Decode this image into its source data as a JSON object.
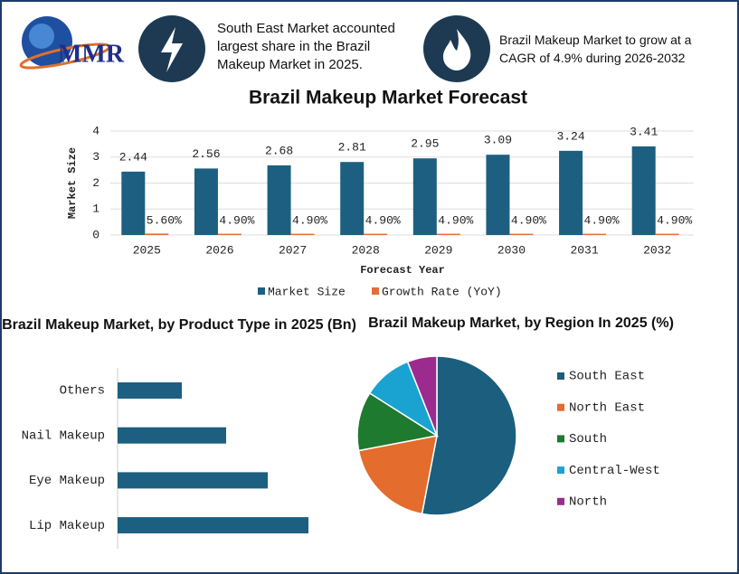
{
  "header": {
    "logo": "MMR",
    "info": [
      "South East Market accounted largest share in the Brazil Makeup Market in 2025.",
      "Brazil Makeup Market to grow at a CAGR of 4.9% during 2026-2032"
    ]
  },
  "chart_data": [
    {
      "type": "bar",
      "title": "Brazil Makeup Market Forecast",
      "x_label": "Forecast Year",
      "y_label": "Market Size",
      "categories": [
        "2025",
        "2026",
        "2027",
        "2028",
        "2029",
        "2030",
        "2031",
        "2032"
      ],
      "series": [
        {
          "name": "Market Size",
          "color": "#1d5f80",
          "values": [
            2.44,
            2.56,
            2.68,
            2.81,
            2.95,
            3.09,
            3.24,
            3.41
          ]
        },
        {
          "name": "Growth Rate (YoY)",
          "color": "#e0703a",
          "values": [
            0.056,
            0.049,
            0.049,
            0.049,
            0.049,
            0.049,
            0.049,
            0.049
          ],
          "value_labels": [
            "5.60%",
            "4.90%",
            "4.90%",
            "4.90%",
            "4.90%",
            "4.90%",
            "4.90%",
            "4.90%"
          ]
        }
      ],
      "ylim": [
        0,
        4
      ],
      "yticks": [
        0,
        1,
        2,
        3,
        4
      ],
      "grid": true,
      "legend": "bottom"
    },
    {
      "type": "bar",
      "orientation": "horizontal",
      "title": "Brazil Makeup Market, by Product Type in 2025 (Bn)",
      "categories": [
        "Others",
        "Nail Makeup",
        "Eye Makeup",
        "Lip Makeup"
      ],
      "values": [
        0.71,
        1.2,
        1.66,
        2.11
      ],
      "color": "#1d5f80"
    },
    {
      "type": "pie",
      "title": "Brazil Makeup Market, by Region In 2025 (%)",
      "categories": [
        "South East",
        "North East",
        "South",
        "Central-West",
        "North"
      ],
      "values": [
        53,
        19,
        12,
        10,
        6
      ],
      "colors": [
        "#1b5e7e",
        "#e46c2c",
        "#1e7a2e",
        "#1aa3d1",
        "#9b2b8f"
      ],
      "legend": "right"
    }
  ]
}
